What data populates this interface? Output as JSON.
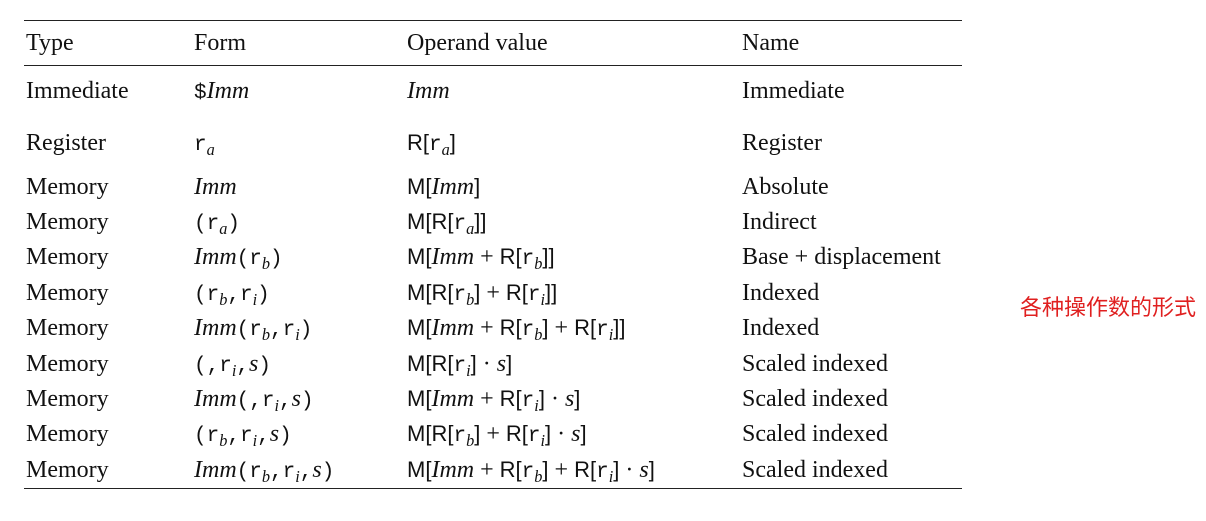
{
  "headers": [
    "Type",
    "Form",
    "Operand value",
    "Name"
  ],
  "rows": [
    {
      "type": "Immediate",
      "form": [
        {
          "t": "$",
          "s": "mono"
        },
        {
          "t": "Imm",
          "s": "it"
        }
      ],
      "value": [
        {
          "t": "Imm",
          "s": "it"
        }
      ],
      "name": "Immediate",
      "gap": true
    },
    {
      "type": "Register",
      "form": [
        {
          "t": "r",
          "s": "mono"
        },
        {
          "t": "a",
          "s": "sub"
        }
      ],
      "value": [
        {
          "t": "R[",
          "s": "sans"
        },
        {
          "t": "r",
          "s": "mono"
        },
        {
          "t": "a",
          "s": "sub"
        },
        {
          "t": "]",
          "s": "sans"
        }
      ],
      "name": "Register",
      "gap": true
    },
    {
      "type": "Memory",
      "form": [
        {
          "t": "Imm",
          "s": "it"
        }
      ],
      "value": [
        {
          "t": "M[",
          "s": "sans"
        },
        {
          "t": "Imm",
          "s": "it"
        },
        {
          "t": "]",
          "s": "sans"
        }
      ],
      "name": "Absolute"
    },
    {
      "type": "Memory",
      "form": [
        {
          "t": "(r",
          "s": "mono"
        },
        {
          "t": "a",
          "s": "sub"
        },
        {
          "t": ")",
          "s": "mono"
        }
      ],
      "value": [
        {
          "t": "M[R[",
          "s": "sans"
        },
        {
          "t": "r",
          "s": "mono"
        },
        {
          "t": "a",
          "s": "sub"
        },
        {
          "t": "]]",
          "s": "sans"
        }
      ],
      "name": "Indirect"
    },
    {
      "type": "Memory",
      "form": [
        {
          "t": "Imm",
          "s": "it"
        },
        {
          "t": "(r",
          "s": "mono"
        },
        {
          "t": "b",
          "s": "sub"
        },
        {
          "t": ")",
          "s": "mono"
        }
      ],
      "value": [
        {
          "t": "M[",
          "s": "sans"
        },
        {
          "t": "Imm",
          "s": "it"
        },
        {
          "t": " + ",
          "s": "ser"
        },
        {
          "t": "R[",
          "s": "sans"
        },
        {
          "t": "r",
          "s": "mono"
        },
        {
          "t": "b",
          "s": "sub"
        },
        {
          "t": "]]",
          "s": "sans"
        }
      ],
      "name": "Base + displacement"
    },
    {
      "type": "Memory",
      "form": [
        {
          "t": "(r",
          "s": "mono"
        },
        {
          "t": "b",
          "s": "sub"
        },
        {
          "t": ",r",
          "s": "mono"
        },
        {
          "t": "i",
          "s": "sub"
        },
        {
          "t": ")",
          "s": "mono"
        }
      ],
      "value": [
        {
          "t": "M[R[",
          "s": "sans"
        },
        {
          "t": "r",
          "s": "mono"
        },
        {
          "t": "b",
          "s": "sub"
        },
        {
          "t": "]",
          "s": "sans"
        },
        {
          "t": " + ",
          "s": "ser"
        },
        {
          "t": "R[",
          "s": "sans"
        },
        {
          "t": "r",
          "s": "mono"
        },
        {
          "t": "i",
          "s": "sub"
        },
        {
          "t": "]]",
          "s": "sans"
        }
      ],
      "name": "Indexed"
    },
    {
      "type": "Memory",
      "form": [
        {
          "t": "Imm",
          "s": "it"
        },
        {
          "t": "(r",
          "s": "mono"
        },
        {
          "t": "b",
          "s": "sub"
        },
        {
          "t": ",r",
          "s": "mono"
        },
        {
          "t": "i",
          "s": "sub"
        },
        {
          "t": ")",
          "s": "mono"
        }
      ],
      "value": [
        {
          "t": "M[",
          "s": "sans"
        },
        {
          "t": "Imm",
          "s": "it"
        },
        {
          "t": " + ",
          "s": "ser"
        },
        {
          "t": "R[",
          "s": "sans"
        },
        {
          "t": "r",
          "s": "mono"
        },
        {
          "t": "b",
          "s": "sub"
        },
        {
          "t": "]",
          "s": "sans"
        },
        {
          "t": " + ",
          "s": "ser"
        },
        {
          "t": "R[",
          "s": "sans"
        },
        {
          "t": "r",
          "s": "mono"
        },
        {
          "t": "i",
          "s": "sub"
        },
        {
          "t": "]]",
          "s": "sans"
        }
      ],
      "name": "Indexed"
    },
    {
      "type": "Memory",
      "form": [
        {
          "t": "(,r",
          "s": "mono"
        },
        {
          "t": "i",
          "s": "sub"
        },
        {
          "t": ",",
          "s": "mono"
        },
        {
          "t": "s",
          "s": "it"
        },
        {
          "t": ")",
          "s": "mono"
        }
      ],
      "value": [
        {
          "t": "M[R[",
          "s": "sans"
        },
        {
          "t": "r",
          "s": "mono"
        },
        {
          "t": "i",
          "s": "sub"
        },
        {
          "t": "]",
          "s": "sans"
        },
        {
          "t": " · ",
          "s": "ser"
        },
        {
          "t": "s",
          "s": "it"
        },
        {
          "t": "]",
          "s": "sans"
        }
      ],
      "name": "Scaled indexed"
    },
    {
      "type": "Memory",
      "form": [
        {
          "t": "Imm",
          "s": "it"
        },
        {
          "t": "(,r",
          "s": "mono"
        },
        {
          "t": "i",
          "s": "sub"
        },
        {
          "t": ",",
          "s": "mono"
        },
        {
          "t": "s",
          "s": "it"
        },
        {
          "t": ")",
          "s": "mono"
        }
      ],
      "value": [
        {
          "t": "M[",
          "s": "sans"
        },
        {
          "t": "Imm",
          "s": "it"
        },
        {
          "t": " + ",
          "s": "ser"
        },
        {
          "t": "R[",
          "s": "sans"
        },
        {
          "t": "r",
          "s": "mono"
        },
        {
          "t": "i",
          "s": "sub"
        },
        {
          "t": "]",
          "s": "sans"
        },
        {
          "t": " · ",
          "s": "ser"
        },
        {
          "t": "s",
          "s": "it"
        },
        {
          "t": "]",
          "s": "sans"
        }
      ],
      "name": "Scaled indexed"
    },
    {
      "type": "Memory",
      "form": [
        {
          "t": "(r",
          "s": "mono"
        },
        {
          "t": "b",
          "s": "sub"
        },
        {
          "t": ",r",
          "s": "mono"
        },
        {
          "t": "i",
          "s": "sub"
        },
        {
          "t": ",",
          "s": "mono"
        },
        {
          "t": "s",
          "s": "it"
        },
        {
          "t": ")",
          "s": "mono"
        }
      ],
      "value": [
        {
          "t": "M[R[",
          "s": "sans"
        },
        {
          "t": "r",
          "s": "mono"
        },
        {
          "t": "b",
          "s": "sub"
        },
        {
          "t": "]",
          "s": "sans"
        },
        {
          "t": " + ",
          "s": "ser"
        },
        {
          "t": "R[",
          "s": "sans"
        },
        {
          "t": "r",
          "s": "mono"
        },
        {
          "t": "i",
          "s": "sub"
        },
        {
          "t": "]",
          "s": "sans"
        },
        {
          "t": " · ",
          "s": "ser"
        },
        {
          "t": "s",
          "s": "it"
        },
        {
          "t": "]",
          "s": "sans"
        }
      ],
      "name": "Scaled indexed"
    },
    {
      "type": "Memory",
      "form": [
        {
          "t": "Imm",
          "s": "it"
        },
        {
          "t": "(r",
          "s": "mono"
        },
        {
          "t": "b",
          "s": "sub"
        },
        {
          "t": ",r",
          "s": "mono"
        },
        {
          "t": "i",
          "s": "sub"
        },
        {
          "t": ",",
          "s": "mono"
        },
        {
          "t": "s",
          "s": "it"
        },
        {
          "t": ")",
          "s": "mono"
        }
      ],
      "value": [
        {
          "t": "M[",
          "s": "sans"
        },
        {
          "t": "Imm",
          "s": "it"
        },
        {
          "t": " + ",
          "s": "ser"
        },
        {
          "t": "R[",
          "s": "sans"
        },
        {
          "t": "r",
          "s": "mono"
        },
        {
          "t": "b",
          "s": "sub"
        },
        {
          "t": "]",
          "s": "sans"
        },
        {
          "t": " + ",
          "s": "ser"
        },
        {
          "t": "R[",
          "s": "sans"
        },
        {
          "t": "r",
          "s": "mono"
        },
        {
          "t": "i",
          "s": "sub"
        },
        {
          "t": "]",
          "s": "sans"
        },
        {
          "t": " · ",
          "s": "ser"
        },
        {
          "t": "s",
          "s": "it"
        },
        {
          "t": "]",
          "s": "sans"
        }
      ],
      "name": "Scaled indexed"
    }
  ],
  "annotation": "各种操作数的形式",
  "colors": {
    "annotation": "#e02020",
    "text": "#111111",
    "rule": "#222222"
  }
}
